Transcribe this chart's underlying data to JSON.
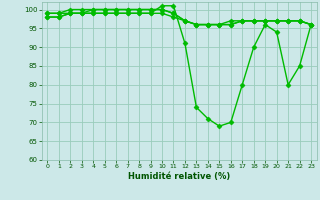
{
  "xlabel": "Humidité relative (%)",
  "xlim": [
    -0.5,
    23.5
  ],
  "ylim": [
    60,
    102
  ],
  "yticks": [
    60,
    65,
    70,
    75,
    80,
    85,
    90,
    95,
    100
  ],
  "xticks": [
    0,
    1,
    2,
    3,
    4,
    5,
    6,
    7,
    8,
    9,
    10,
    11,
    12,
    13,
    14,
    15,
    16,
    17,
    18,
    19,
    20,
    21,
    22,
    23
  ],
  "background_color": "#cce8e8",
  "grid_color": "#99ccbb",
  "line_color": "#00bb00",
  "line_width": 1.0,
  "marker": "D",
  "marker_size": 2.5,
  "series": [
    [
      99,
      99,
      99,
      99,
      99,
      99,
      99,
      99,
      99,
      99,
      101,
      101,
      91,
      74,
      71,
      69,
      70,
      80,
      90,
      96,
      94,
      80,
      85,
      96
    ],
    [
      99,
      99,
      100,
      100,
      100,
      100,
      100,
      100,
      100,
      100,
      100,
      99,
      97,
      96,
      96,
      96,
      96,
      97,
      97,
      97,
      97,
      97,
      97,
      96
    ],
    [
      98,
      98,
      99,
      99,
      99,
      99,
      99,
      99,
      99,
      99,
      99,
      98,
      97,
      96,
      96,
      96,
      96,
      97,
      97,
      97,
      97,
      97,
      97,
      96
    ],
    [
      98,
      98,
      99,
      99,
      100,
      100,
      100,
      100,
      100,
      100,
      100,
      99,
      97,
      96,
      96,
      96,
      97,
      97,
      97,
      97,
      97,
      97,
      97,
      96
    ]
  ]
}
